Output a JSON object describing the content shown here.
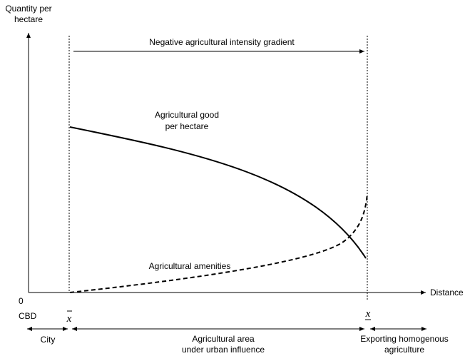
{
  "labels": {
    "y_axis_line1": "Quantity per",
    "y_axis_line2": "hectare",
    "x_axis": "Distance",
    "origin": "0",
    "cbd": "CBD",
    "x_bar": "x",
    "x_underbar": "x",
    "gradient": "Negative agricultural intensity gradient",
    "good_line1": "Agricultural good",
    "good_line2": "per hectare",
    "amenities": "Agricultural amenities",
    "city": "City",
    "area_line1": "Agricultural area",
    "area_line2": "under urban influence",
    "export_line1": "Exporting homogenous",
    "export_line2": "agriculture"
  },
  "colors": {
    "ink": "#000000",
    "background": "#ffffff"
  }
}
